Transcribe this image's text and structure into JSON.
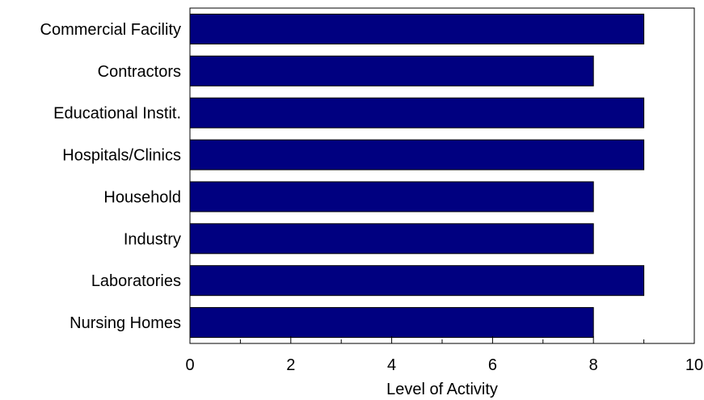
{
  "chart_data": {
    "type": "bar",
    "orientation": "horizontal",
    "title": "",
    "xlabel": "Level of Activity",
    "ylabel": "",
    "categories": [
      "Commercial Facility",
      "Contractors",
      "Educational Instit.",
      "Hospitals/Clinics",
      "Household",
      "Industry",
      "Laboratories",
      "Nursing Homes"
    ],
    "values": [
      9,
      8,
      9,
      9,
      8,
      8,
      9,
      8
    ],
    "xlim": [
      0,
      10
    ],
    "xticks": [
      0,
      2,
      4,
      6,
      8,
      10
    ],
    "xticks_minor": [
      1,
      3,
      5,
      7,
      9
    ],
    "grid": false,
    "legend": "none",
    "bar_color": "#000080",
    "bar_edge_color": "#000000"
  }
}
